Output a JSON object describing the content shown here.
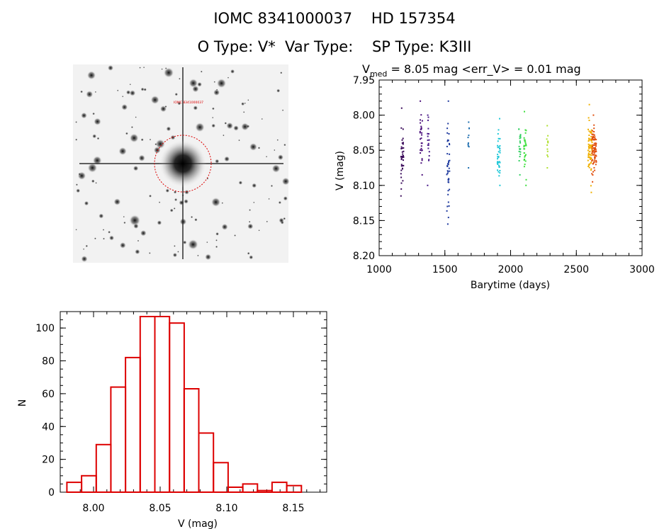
{
  "header": {
    "title_line1": "IOMC 8341000037    HD 157354",
    "title_line2": "O Type: V*  Var Type:    SP Type: K3III"
  },
  "image_panel": {
    "target_label": "IOMC 8341000037"
  },
  "chart_data": [
    {
      "type": "scatter",
      "title_prefix": "V",
      "title_subscript": "med",
      "title_suffix": " = 8.05 mag <err_V> = 0.01 mag",
      "xlabel": "Barytime (days)",
      "ylabel": "V (mag)",
      "xlim": [
        1000,
        3000
      ],
      "ylim": [
        8.2,
        7.95
      ],
      "y_inverted": true,
      "xticks": [
        1000,
        1500,
        2000,
        2500,
        3000
      ],
      "yticks": [
        7.95,
        8.0,
        8.05,
        8.1,
        8.15,
        8.2
      ],
      "ytick_labels": [
        "7.95",
        "8.00",
        "8.05",
        "8.10",
        "8.15",
        "8.20"
      ],
      "grid": false,
      "color_by_time": true,
      "epochs": [
        {
          "x": 1175,
          "y_min": 7.99,
          "y_max": 8.115,
          "y_center": 8.055,
          "n": 40,
          "color": "#3a0a5a"
        },
        {
          "x": 1320,
          "y_min": 7.98,
          "y_max": 8.085,
          "y_center": 8.035,
          "n": 28,
          "color": "#4a0e7a"
        },
        {
          "x": 1375,
          "y_min": 8.0,
          "y_max": 8.1,
          "y_center": 8.045,
          "n": 18,
          "color": "#4a1a8a"
        },
        {
          "x": 1525,
          "y_min": 7.98,
          "y_max": 8.155,
          "y_center": 8.075,
          "n": 42,
          "color": "#1f3a9e"
        },
        {
          "x": 1680,
          "y_min": 8.01,
          "y_max": 8.075,
          "y_center": 8.035,
          "n": 10,
          "color": "#1f6fb0"
        },
        {
          "x": 1910,
          "y_min": 8.005,
          "y_max": 8.1,
          "y_center": 8.06,
          "n": 38,
          "color": "#20c8d8"
        },
        {
          "x": 2070,
          "y_min": 8.02,
          "y_max": 8.085,
          "y_center": 8.045,
          "n": 20,
          "color": "#30d060"
        },
        {
          "x": 2110,
          "y_min": 7.995,
          "y_max": 8.1,
          "y_center": 8.05,
          "n": 30,
          "color": "#40e040"
        },
        {
          "x": 2280,
          "y_min": 8.015,
          "y_max": 8.075,
          "y_center": 8.04,
          "n": 12,
          "color": "#b0e030"
        },
        {
          "x": 2605,
          "y_min": 7.985,
          "y_max": 8.11,
          "y_center": 8.05,
          "n": 70,
          "color": "#f0b000"
        },
        {
          "x": 2635,
          "y_min": 8.0,
          "y_max": 8.095,
          "y_center": 8.048,
          "n": 80,
          "color": "#e05010"
        }
      ]
    },
    {
      "type": "bar",
      "histogram": true,
      "xlabel": "V (mag)",
      "ylabel": "N",
      "xlim": [
        7.975,
        8.175
      ],
      "ylim": [
        0,
        110
      ],
      "xticks": [
        8.0,
        8.05,
        8.1,
        8.15
      ],
      "xtick_labels": [
        "8.00",
        "8.05",
        "8.10",
        "8.15"
      ],
      "yticks": [
        0,
        20,
        40,
        60,
        80,
        100
      ],
      "bin_width": 0.011,
      "bin_starts": [
        7.98,
        7.991,
        8.002,
        8.013,
        8.024,
        8.035,
        8.046,
        8.057,
        8.068,
        8.079,
        8.09,
        8.101,
        8.112,
        8.123,
        8.134,
        8.145
      ],
      "values": [
        6,
        10,
        29,
        64,
        82,
        107,
        107,
        103,
        63,
        36,
        18,
        3,
        5,
        1,
        6,
        4
      ],
      "color": "#dd0000"
    }
  ]
}
